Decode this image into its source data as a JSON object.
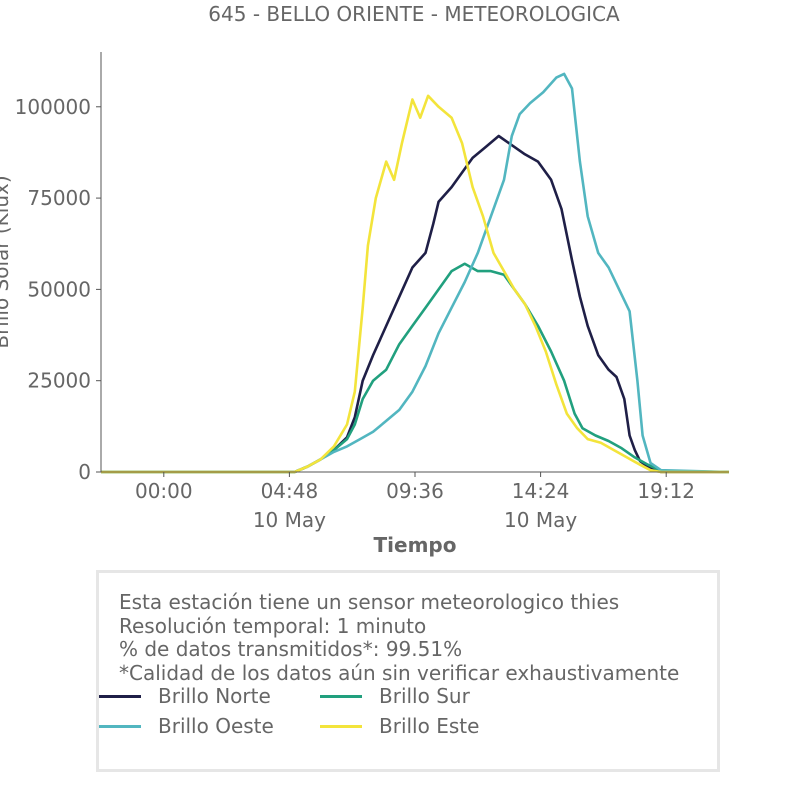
{
  "chart_data": {
    "type": "line",
    "title": "645 - BELLO ORIENTE - METEOROLOGICA",
    "xlabel": "Tiempo",
    "ylabel": "Brillo Solar (Klux)",
    "x_ticks": [
      {
        "value": "00:00",
        "sub": ""
      },
      {
        "value": "04:48",
        "sub": "10 May"
      },
      {
        "value": "09:36",
        "sub": ""
      },
      {
        "value": "14:24",
        "sub": "10 May"
      },
      {
        "value": "19:12",
        "sub": ""
      }
    ],
    "y_ticks": [
      "0",
      "25000",
      "50000",
      "75000",
      "100000"
    ],
    "ylim": [
      0,
      115000
    ],
    "xlim_hours": [
      -2.4,
      21.6
    ],
    "legend_position": "bottom",
    "series": [
      {
        "name": "Brillo Norte",
        "color": "#1f1f47",
        "points": [
          [
            -2.4,
            0
          ],
          [
            5,
            0
          ],
          [
            5.5,
            1500
          ],
          [
            6,
            3500
          ],
          [
            6.5,
            6000
          ],
          [
            7,
            9500
          ],
          [
            7.3,
            15000
          ],
          [
            7.6,
            25000
          ],
          [
            8,
            32000
          ],
          [
            8.5,
            40000
          ],
          [
            9,
            48000
          ],
          [
            9.5,
            56000
          ],
          [
            10,
            60000
          ],
          [
            10.3,
            68000
          ],
          [
            10.5,
            74000
          ],
          [
            11,
            78000
          ],
          [
            11.4,
            82000
          ],
          [
            11.8,
            86000
          ],
          [
            12.3,
            89000
          ],
          [
            12.8,
            92000
          ],
          [
            13.2,
            90000
          ],
          [
            13.8,
            87000
          ],
          [
            14.3,
            85000
          ],
          [
            14.8,
            80000
          ],
          [
            15.2,
            72000
          ],
          [
            15.6,
            58000
          ],
          [
            15.9,
            48000
          ],
          [
            16.2,
            40000
          ],
          [
            16.6,
            32000
          ],
          [
            17.0,
            28000
          ],
          [
            17.3,
            26000
          ],
          [
            17.6,
            20000
          ],
          [
            17.8,
            10000
          ],
          [
            18.0,
            6000
          ],
          [
            18.2,
            3000
          ],
          [
            18.6,
            1000
          ],
          [
            19,
            0
          ],
          [
            21.6,
            0
          ]
        ]
      },
      {
        "name": "Brillo Sur",
        "color": "#21a07e",
        "points": [
          [
            -2.4,
            0
          ],
          [
            5,
            0
          ],
          [
            5.5,
            1500
          ],
          [
            6,
            3500
          ],
          [
            6.5,
            6000
          ],
          [
            7,
            9000
          ],
          [
            7.3,
            13000
          ],
          [
            7.6,
            20000
          ],
          [
            8,
            25000
          ],
          [
            8.5,
            28000
          ],
          [
            9,
            35000
          ],
          [
            9.5,
            40000
          ],
          [
            10,
            45000
          ],
          [
            10.5,
            50000
          ],
          [
            11,
            55000
          ],
          [
            11.5,
            57000
          ],
          [
            12,
            55000
          ],
          [
            12.5,
            55000
          ],
          [
            13,
            54000
          ],
          [
            13.4,
            50000
          ],
          [
            13.8,
            46000
          ],
          [
            14.3,
            40000
          ],
          [
            14.8,
            33000
          ],
          [
            15.3,
            25000
          ],
          [
            15.7,
            16000
          ],
          [
            16.0,
            12000
          ],
          [
            16.5,
            10000
          ],
          [
            17.0,
            8500
          ],
          [
            17.5,
            6500
          ],
          [
            18.0,
            4000
          ],
          [
            18.5,
            2000
          ],
          [
            19,
            300
          ],
          [
            21.6,
            0
          ]
        ]
      },
      {
        "name": "Brillo Oeste",
        "color": "#52b6c0",
        "points": [
          [
            -2.4,
            0
          ],
          [
            5,
            0
          ],
          [
            5.5,
            1500
          ],
          [
            6,
            3500
          ],
          [
            6.5,
            5500
          ],
          [
            7,
            7000
          ],
          [
            7.5,
            9000
          ],
          [
            8,
            11000
          ],
          [
            8.5,
            14000
          ],
          [
            9,
            17000
          ],
          [
            9.5,
            22000
          ],
          [
            10,
            29000
          ],
          [
            10.5,
            38000
          ],
          [
            11,
            45000
          ],
          [
            11.5,
            52000
          ],
          [
            12,
            60000
          ],
          [
            12.5,
            70000
          ],
          [
            13,
            80000
          ],
          [
            13.3,
            92000
          ],
          [
            13.6,
            98000
          ],
          [
            14,
            101000
          ],
          [
            14.5,
            104000
          ],
          [
            15,
            108000
          ],
          [
            15.3,
            109000
          ],
          [
            15.6,
            105000
          ],
          [
            15.9,
            85000
          ],
          [
            16.2,
            70000
          ],
          [
            16.6,
            60000
          ],
          [
            17.0,
            56000
          ],
          [
            17.4,
            50000
          ],
          [
            17.8,
            44000
          ],
          [
            18.1,
            25000
          ],
          [
            18.3,
            10000
          ],
          [
            18.6,
            2500
          ],
          [
            19,
            500
          ],
          [
            21.6,
            0
          ]
        ]
      },
      {
        "name": "Brillo Este",
        "color": "#f3e43b",
        "points": [
          [
            -2.4,
            0
          ],
          [
            5,
            0
          ],
          [
            5.5,
            1500
          ],
          [
            6,
            3500
          ],
          [
            6.5,
            7000
          ],
          [
            7,
            13000
          ],
          [
            7.3,
            22000
          ],
          [
            7.6,
            45000
          ],
          [
            7.8,
            62000
          ],
          [
            8.1,
            75000
          ],
          [
            8.5,
            85000
          ],
          [
            8.8,
            80000
          ],
          [
            9.1,
            90000
          ],
          [
            9.5,
            102000
          ],
          [
            9.8,
            97000
          ],
          [
            10.1,
            103000
          ],
          [
            10.5,
            100000
          ],
          [
            11,
            97000
          ],
          [
            11.4,
            90000
          ],
          [
            11.8,
            78000
          ],
          [
            12.2,
            70000
          ],
          [
            12.6,
            60000
          ],
          [
            13.0,
            55000
          ],
          [
            13.4,
            50000
          ],
          [
            13.8,
            46000
          ],
          [
            14.2,
            40000
          ],
          [
            14.6,
            33000
          ],
          [
            15.0,
            24000
          ],
          [
            15.4,
            16000
          ],
          [
            15.8,
            12000
          ],
          [
            16.2,
            9000
          ],
          [
            16.7,
            8000
          ],
          [
            17.2,
            6000
          ],
          [
            17.7,
            4000
          ],
          [
            18.2,
            2000
          ],
          [
            18.6,
            500
          ],
          [
            19,
            0
          ],
          [
            21.6,
            0
          ]
        ]
      }
    ]
  },
  "info_box": {
    "lines": [
      "Esta estación tiene un sensor meteorologico thies",
      "Resolución temporal: 1 minuto",
      "% de datos transmitidos*: 99.51%",
      "*Calidad de los datos aún sin verificar exhaustivamente"
    ]
  }
}
